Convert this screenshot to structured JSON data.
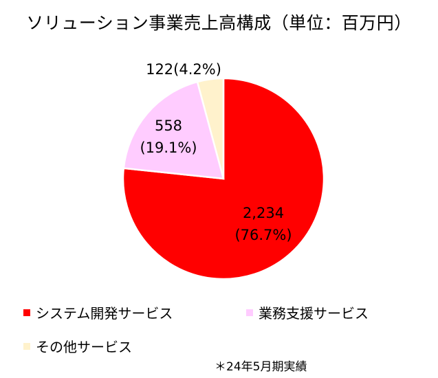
{
  "chart_data": {
    "type": "pie",
    "title": "ソリューション事業売上高構成（単位：百万円）",
    "categories": [
      "システム開発サービス",
      "業務支援サービス",
      "その他サービス"
    ],
    "values": [
      2234,
      558,
      122
    ],
    "percent_labels": [
      "(76.7%)",
      "(19.1%)",
      "(4.2%)"
    ],
    "value_labels": [
      "2,234",
      "558",
      "122"
    ],
    "colors": [
      "#ff0000",
      "#ffccff",
      "#fff2cc"
    ],
    "start_angle": "12 o'clock",
    "direction": "clockwise",
    "legend_position": "bottom",
    "note": "＊24年5月期実績"
  }
}
